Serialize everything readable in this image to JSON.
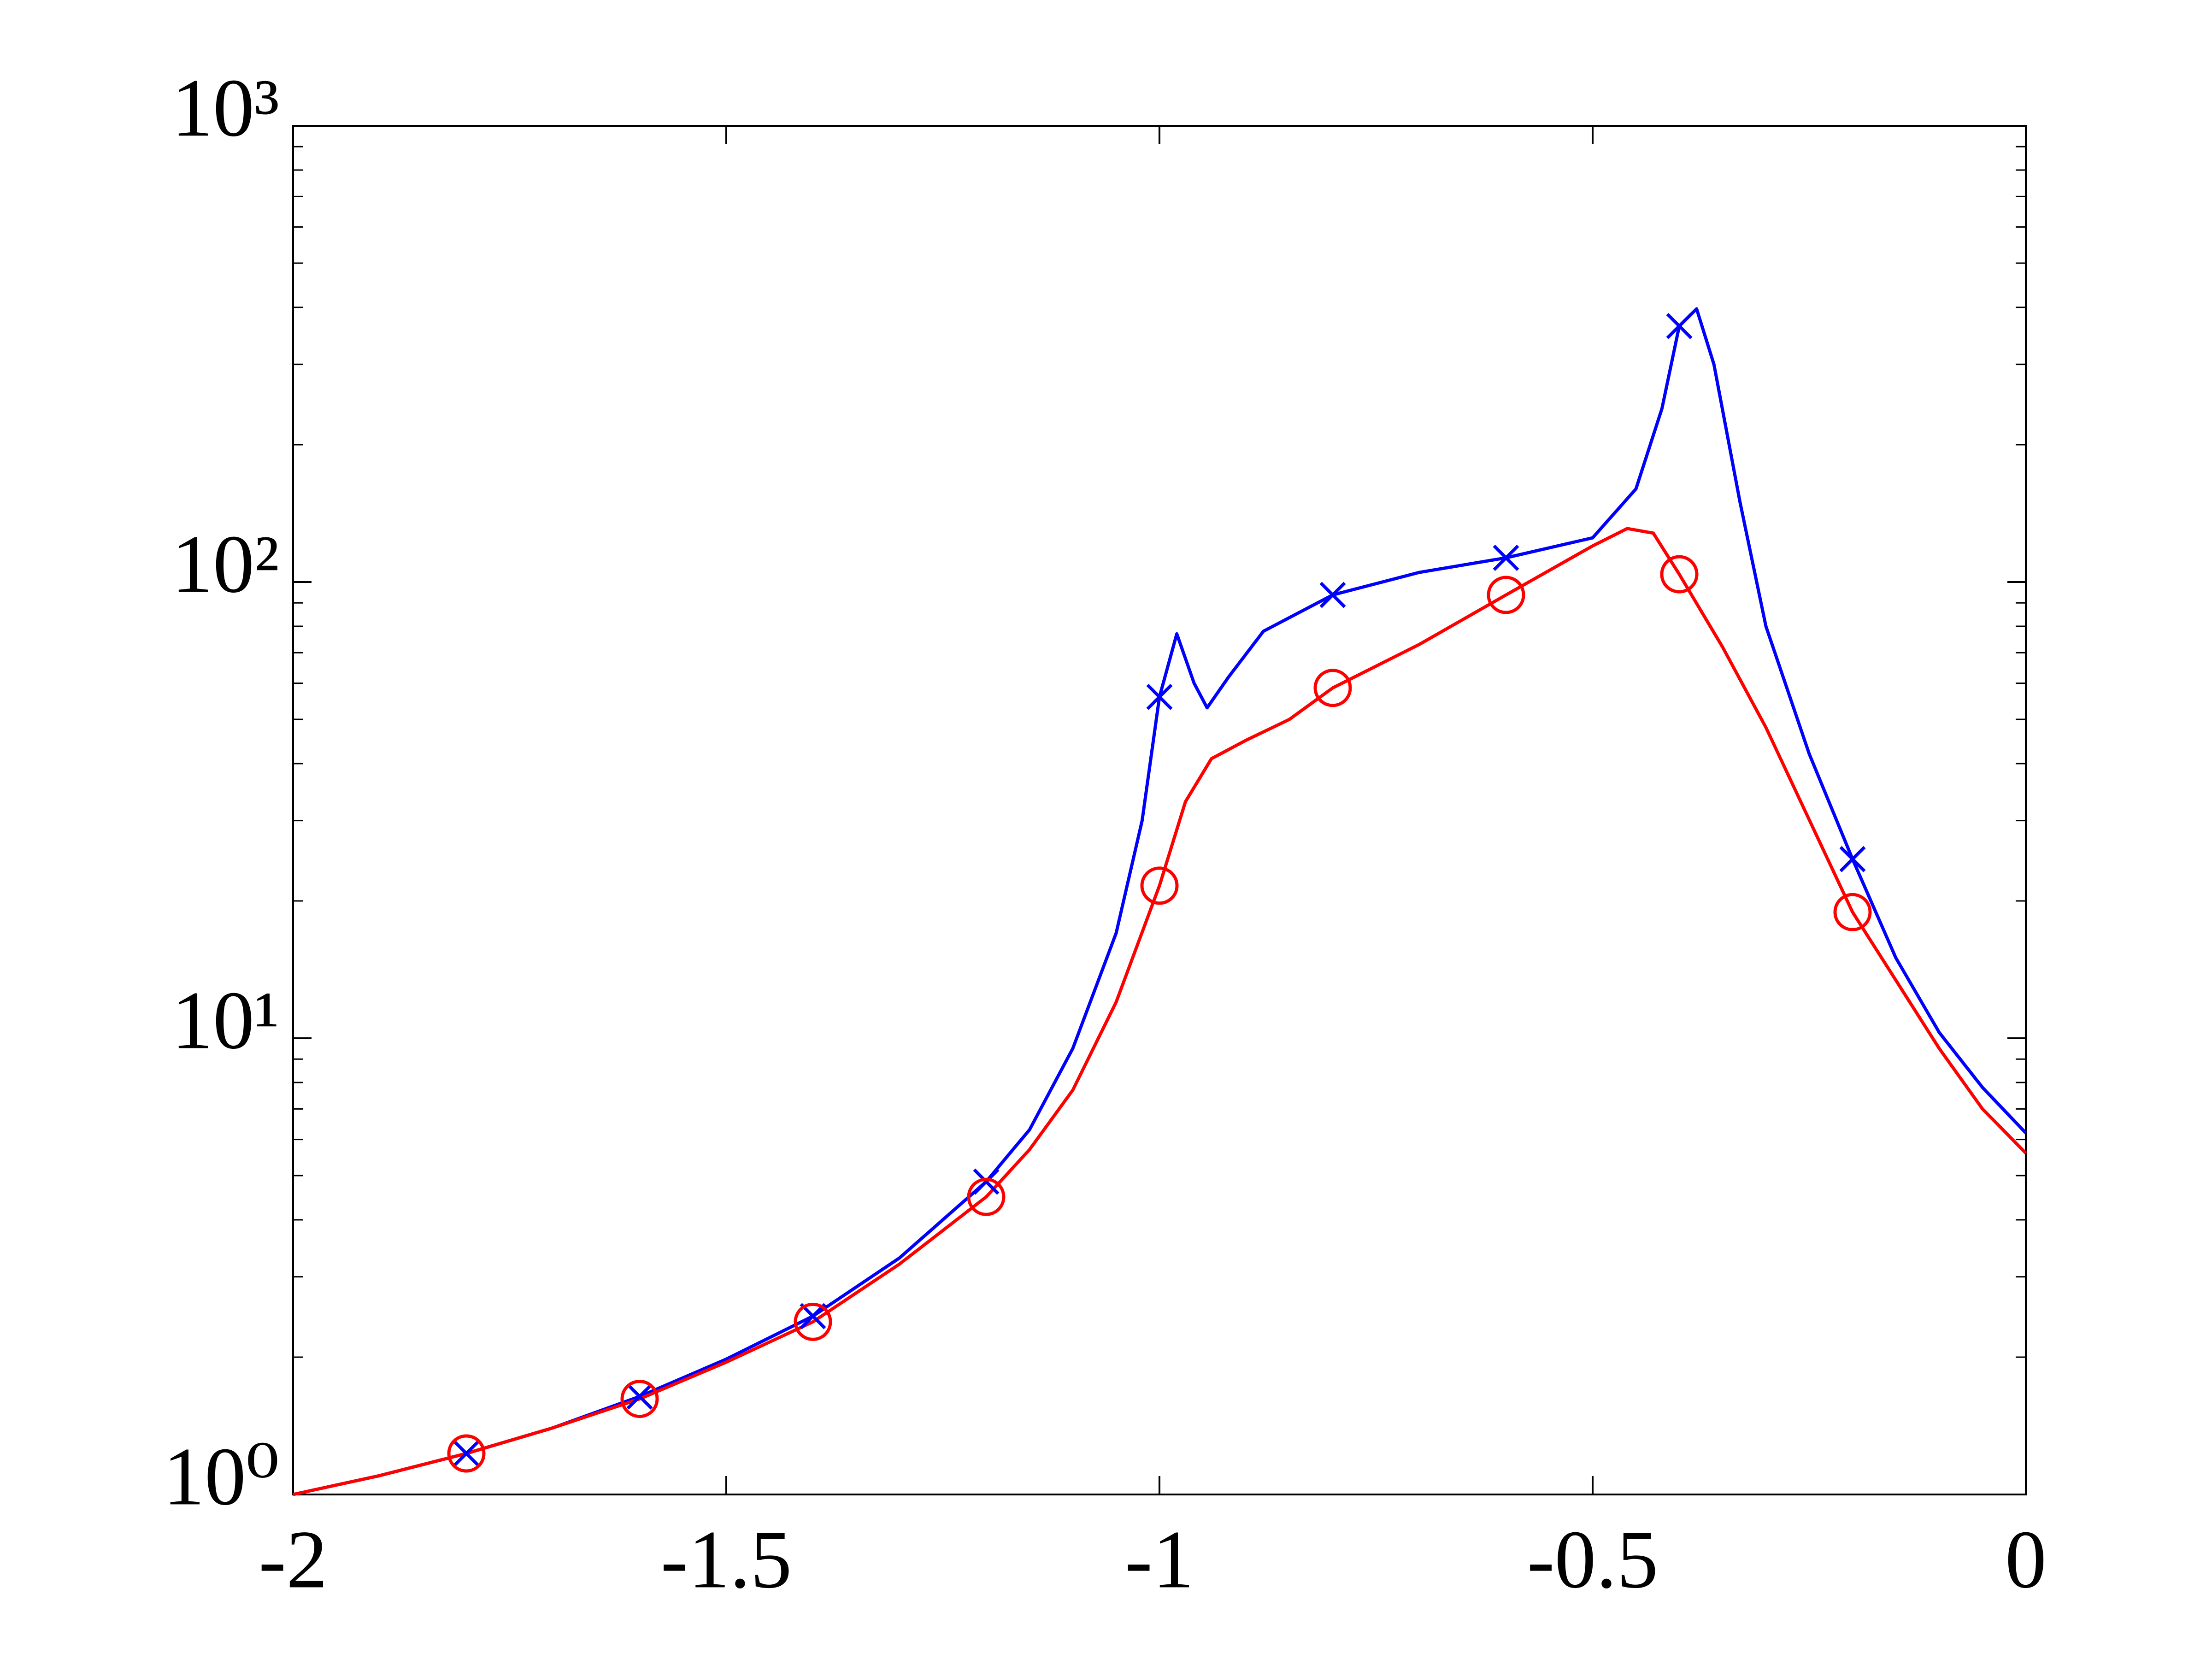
{
  "chart_data": {
    "type": "line",
    "log_y": true,
    "xlim": [
      -2,
      0
    ],
    "xticks": [
      -2,
      -1.5,
      -1,
      -0.5,
      0
    ],
    "ylim": [
      1,
      1000
    ],
    "yticks": [
      {
        "value": 1,
        "label": "10⁰"
      },
      {
        "value": 10,
        "label": "10¹"
      },
      {
        "value": 100,
        "label": "10²"
      },
      {
        "value": 1000,
        "label": "10³"
      }
    ],
    "series": [
      {
        "color": "#0000ff",
        "marker": "none",
        "x": [
          -2,
          -1.9,
          -1.8,
          -1.7,
          -1.6,
          -1.5,
          -1.4,
          -1.3,
          -1.2,
          -1.15,
          -1.1,
          -1.05,
          -1.02,
          -1.0,
          -0.98,
          -0.96,
          -0.945,
          -0.92,
          -0.88,
          -0.8,
          -0.7,
          -0.6,
          -0.5,
          -0.45,
          -0.42,
          -0.4,
          -0.38,
          -0.36,
          -0.33,
          -0.3,
          -0.25,
          -0.2,
          -0.15,
          -0.1,
          -0.05,
          0
        ],
        "values": [
          1.0,
          1.1,
          1.23,
          1.4,
          1.64,
          1.98,
          2.46,
          3.3,
          4.85,
          6.3,
          9.5,
          17,
          30,
          56,
          77,
          60,
          53,
          62,
          78,
          93.7,
          105,
          113,
          125,
          160,
          240,
          364,
          397,
          300,
          150,
          80,
          42,
          24.7,
          15,
          10.3,
          7.8,
          6.2
        ]
      },
      {
        "color": "#ff0000",
        "marker": "none",
        "x": [
          -2,
          -1.9,
          -1.8,
          -1.7,
          -1.6,
          -1.5,
          -1.4,
          -1.3,
          -1.2,
          -1.15,
          -1.1,
          -1.05,
          -1.0,
          -0.97,
          -0.94,
          -0.9,
          -0.85,
          -0.8,
          -0.7,
          -0.6,
          -0.5,
          -0.46,
          -0.43,
          -0.4,
          -0.35,
          -0.3,
          -0.2,
          -0.1,
          -0.05,
          0
        ],
        "values": [
          1.0,
          1.1,
          1.23,
          1.4,
          1.62,
          1.95,
          2.39,
          3.2,
          4.49,
          5.7,
          7.7,
          12,
          21.6,
          33,
          41,
          45,
          50,
          58.6,
          73,
          93.7,
          120,
          131,
          128,
          104,
          72,
          48,
          18.9,
          9.5,
          7,
          5.6
        ]
      },
      {
        "color": "#0000ff",
        "marker": "x",
        "x": [
          -1.8,
          -1.6,
          -1.4,
          -1.2,
          -1.0,
          -0.8,
          -0.6,
          -0.4,
          -0.2
        ],
        "values": [
          1.23,
          1.64,
          2.46,
          4.85,
          56,
          93.7,
          113,
          364,
          24.7
        ]
      },
      {
        "color": "#ff0000",
        "marker": "o",
        "x": [
          -1.8,
          -1.6,
          -1.4,
          -1.2,
          -1.0,
          -0.8,
          -0.6,
          -0.4,
          -0.2
        ],
        "values": [
          1.23,
          1.62,
          2.39,
          4.49,
          21.6,
          58.6,
          93.7,
          104,
          18.9
        ]
      }
    ]
  }
}
